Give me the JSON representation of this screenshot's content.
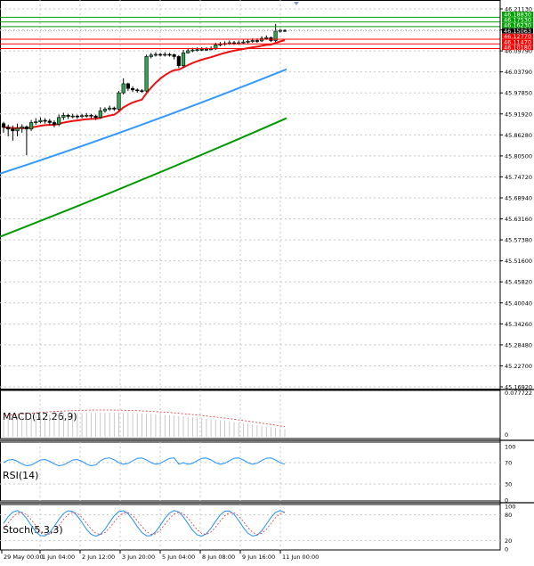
{
  "chart_data": {
    "type": "candlestick",
    "instrument_note": "",
    "price_axis": {
      "ticks": [
        "46.21130",
        "46.15063",
        "46.09790",
        "46.03790",
        "45.97850",
        "45.91920",
        "45.86280",
        "45.80500",
        "45.74720",
        "45.68940",
        "45.63160",
        "45.57380",
        "45.51600",
        "45.45820",
        "45.40040",
        "45.34260",
        "45.28480",
        "45.22700",
        "45.16920"
      ],
      "ylim": [
        45.1692,
        46.2113
      ]
    },
    "price_labels": [
      {
        "text": "46.18830",
        "value": 46.1883,
        "color": "#00a000"
      },
      {
        "text": "46.17530",
        "value": 46.1753,
        "color": "#00a000"
      },
      {
        "text": "46.16230",
        "value": 46.1623,
        "color": "#00a000"
      },
      {
        "text": "46.15063",
        "value": 46.15063,
        "color": "#000000"
      },
      {
        "text": "46.12770",
        "value": 46.1277,
        "color": "#ff0000"
      },
      {
        "text": "46.11470",
        "value": 46.1147,
        "color": "#ff0000"
      },
      {
        "text": "46.10180",
        "value": 46.1018,
        "color": "#ff0000"
      }
    ],
    "resistance_levels": [
      46.1883,
      46.1753,
      46.1623
    ],
    "support_levels": [
      46.1277,
      46.1147,
      46.1018
    ],
    "x_labels": [
      "29 May 00:00",
      "1 Jun 04:00",
      "2 Jun 12:00",
      "3 Jun 20:00",
      "5 Jun 04:00",
      "8 Jun 08:00",
      "9 Jun 16:00",
      "11 Jun 00:00"
    ],
    "candles": [
      [
        45.895,
        45.885,
        45.9,
        45.87
      ],
      [
        45.885,
        45.88,
        45.892,
        45.86
      ],
      [
        45.88,
        45.875,
        45.89,
        45.848
      ],
      [
        45.875,
        45.882,
        45.895,
        45.86
      ],
      [
        45.882,
        45.886,
        45.893,
        45.87
      ],
      [
        45.886,
        45.88,
        45.89,
        45.808
      ],
      [
        45.88,
        45.898,
        45.905,
        45.875
      ],
      [
        45.898,
        45.9,
        45.91,
        45.892
      ],
      [
        45.9,
        45.904,
        45.912,
        45.896
      ],
      [
        45.904,
        45.902,
        45.91,
        45.895
      ],
      [
        45.902,
        45.898,
        45.908,
        45.89
      ],
      [
        45.898,
        45.893,
        45.904,
        45.885
      ],
      [
        45.893,
        45.912,
        45.92,
        45.888
      ],
      [
        45.912,
        45.918,
        45.925,
        45.905
      ],
      [
        45.918,
        45.915,
        45.922,
        45.908
      ],
      [
        45.915,
        45.916,
        45.922,
        45.91
      ],
      [
        45.916,
        45.915,
        45.92,
        45.908
      ],
      [
        45.915,
        45.917,
        45.922,
        45.91
      ],
      [
        45.917,
        45.918,
        45.924,
        45.912
      ],
      [
        45.918,
        45.916,
        45.922,
        45.91
      ],
      [
        45.916,
        45.912,
        45.92,
        45.905
      ],
      [
        45.912,
        45.93,
        45.94,
        45.908
      ],
      [
        45.93,
        45.935,
        45.94,
        45.925
      ],
      [
        45.935,
        45.938,
        45.945,
        45.93
      ],
      [
        45.938,
        45.935,
        45.942,
        45.93
      ],
      [
        45.935,
        45.98,
        45.985,
        45.93
      ],
      [
        45.98,
        46.005,
        46.02,
        45.975
      ],
      [
        46.005,
        45.992,
        46.008,
        45.985
      ],
      [
        45.992,
        45.988,
        45.998,
        45.982
      ],
      [
        45.988,
        45.986,
        45.992,
        45.98
      ],
      [
        45.986,
        45.985,
        45.99,
        45.98
      ],
      [
        45.985,
        46.08,
        46.085,
        45.982
      ],
      [
        46.08,
        46.084,
        46.09,
        46.075
      ],
      [
        46.084,
        46.086,
        46.092,
        46.08
      ],
      [
        46.086,
        46.085,
        46.09,
        46.08
      ],
      [
        46.085,
        46.086,
        46.092,
        46.08
      ],
      [
        46.086,
        46.085,
        46.09,
        46.08
      ],
      [
        46.085,
        46.08,
        46.088,
        46.072
      ],
      [
        46.08,
        46.055,
        46.084,
        46.048
      ],
      [
        46.055,
        46.09,
        46.098,
        46.05
      ],
      [
        46.09,
        46.096,
        46.102,
        46.088
      ],
      [
        46.096,
        46.098,
        46.104,
        46.092
      ],
      [
        46.098,
        46.099,
        46.105,
        46.094
      ],
      [
        46.099,
        46.1,
        46.106,
        46.095
      ],
      [
        46.1,
        46.1,
        46.106,
        46.096
      ],
      [
        46.1,
        46.101,
        46.108,
        46.097
      ],
      [
        46.101,
        46.112,
        46.118,
        46.098
      ],
      [
        46.112,
        46.114,
        46.12,
        46.108
      ],
      [
        46.114,
        46.116,
        46.122,
        46.11
      ],
      [
        46.116,
        46.118,
        46.124,
        46.112
      ],
      [
        46.118,
        46.116,
        46.123,
        46.112
      ],
      [
        46.116,
        46.118,
        46.124,
        46.112
      ],
      [
        46.118,
        46.12,
        46.126,
        46.114
      ],
      [
        46.12,
        46.122,
        46.128,
        46.116
      ],
      [
        46.122,
        46.124,
        46.13,
        46.118
      ],
      [
        46.124,
        46.123,
        46.13,
        46.118
      ],
      [
        46.123,
        46.13,
        46.136,
        46.12
      ],
      [
        46.13,
        46.132,
        46.138,
        46.126
      ],
      [
        46.132,
        46.124,
        46.135,
        46.12
      ],
      [
        46.124,
        46.15,
        46.17,
        46.12
      ],
      [
        46.15,
        46.152,
        46.156,
        46.146
      ],
      [
        46.152,
        46.151,
        46.155,
        46.148
      ]
    ],
    "ema_red_end": 46.125,
    "ema_blue_end": 46.045,
    "ema_green_end": 45.91,
    "indicators": [
      {
        "name": "MACD(12,26,9)",
        "ticks": [
          "0.077722",
          "0"
        ]
      },
      {
        "name": "RSI(14)",
        "ticks": [
          "100",
          "70",
          "30",
          "0"
        ],
        "last": 75
      },
      {
        "name": "Stoch(5,3,3)",
        "ticks": [
          "100",
          "80",
          "20",
          "0"
        ]
      }
    ]
  }
}
